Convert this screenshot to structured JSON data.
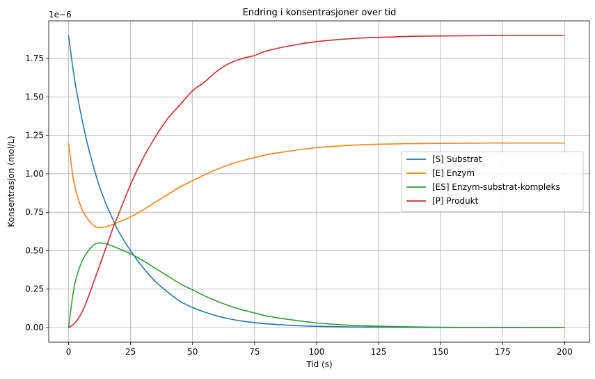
{
  "chart_data": {
    "type": "line",
    "title": "Endring i konsentrasjoner over tid",
    "xlabel": "Tid (s)",
    "ylabel": "Konsentrasjon (mol/L)",
    "y_scale_label": "1e−6",
    "xlim": [
      -8,
      210
    ],
    "ylim": [
      -0.095,
      1.995
    ],
    "x_ticks": [
      0,
      25,
      50,
      75,
      100,
      125,
      150,
      175,
      200
    ],
    "x_tick_labels": [
      "0",
      "25",
      "50",
      "75",
      "100",
      "125",
      "150",
      "175",
      "200"
    ],
    "y_ticks": [
      0,
      0.25,
      0.5,
      0.75,
      1.0,
      1.25,
      1.5,
      1.75
    ],
    "y_tick_labels": [
      "0.00",
      "0.25",
      "0.50",
      "0.75",
      "1.00",
      "1.25",
      "1.50",
      "1.75"
    ],
    "grid": true,
    "legend_position": "center-right",
    "x": [
      0,
      2,
      4,
      6,
      8,
      10,
      12,
      14,
      16,
      18,
      20,
      25,
      30,
      35,
      40,
      45,
      50,
      55,
      60,
      65,
      70,
      75,
      80,
      90,
      100,
      110,
      120,
      130,
      140,
      150,
      160,
      170,
      180,
      190,
      200
    ],
    "series": [
      {
        "name": "[S] Substrat",
        "color": "#1f77b4",
        "values": [
          1.9,
          1.66,
          1.47,
          1.31,
          1.17,
          1.05,
          0.94,
          0.85,
          0.77,
          0.7,
          0.63,
          0.5,
          0.39,
          0.3,
          0.23,
          0.17,
          0.13,
          0.1,
          0.075,
          0.056,
          0.042,
          0.032,
          0.024,
          0.014,
          0.008,
          0.005,
          0.003,
          0.002,
          0.001,
          0.0005,
          0.0003,
          0.0002,
          0.0001,
          0.0,
          0.0
        ]
      },
      {
        "name": "[E] Enzym",
        "color": "#ff7f0e",
        "values": [
          1.2,
          0.96,
          0.83,
          0.75,
          0.7,
          0.665,
          0.65,
          0.652,
          0.66,
          0.672,
          0.685,
          0.72,
          0.765,
          0.815,
          0.865,
          0.915,
          0.955,
          0.995,
          1.03,
          1.06,
          1.085,
          1.105,
          1.125,
          1.15,
          1.17,
          1.182,
          1.19,
          1.194,
          1.197,
          1.198,
          1.199,
          1.2,
          1.2,
          1.2,
          1.2
        ]
      },
      {
        "name": "[ES] Enzym-substrat-kompleks",
        "color": "#2ca02c",
        "values": [
          0.0,
          0.24,
          0.37,
          0.45,
          0.5,
          0.535,
          0.55,
          0.548,
          0.54,
          0.528,
          0.515,
          0.48,
          0.435,
          0.385,
          0.335,
          0.285,
          0.245,
          0.205,
          0.17,
          0.14,
          0.115,
          0.095,
          0.075,
          0.05,
          0.03,
          0.018,
          0.011,
          0.007,
          0.004,
          0.002,
          0.001,
          0.0006,
          0.0003,
          0.0001,
          0.0
        ]
      },
      {
        "name": "[P] Produkt",
        "color": "#d62728",
        "values": [
          0.0,
          0.02,
          0.06,
          0.12,
          0.2,
          0.29,
          0.38,
          0.47,
          0.56,
          0.65,
          0.73,
          0.93,
          1.1,
          1.24,
          1.36,
          1.45,
          1.54,
          1.6,
          1.67,
          1.72,
          1.75,
          1.77,
          1.8,
          1.835,
          1.86,
          1.875,
          1.885,
          1.89,
          1.895,
          1.897,
          1.898,
          1.899,
          1.9,
          1.9,
          1.9
        ]
      }
    ]
  }
}
